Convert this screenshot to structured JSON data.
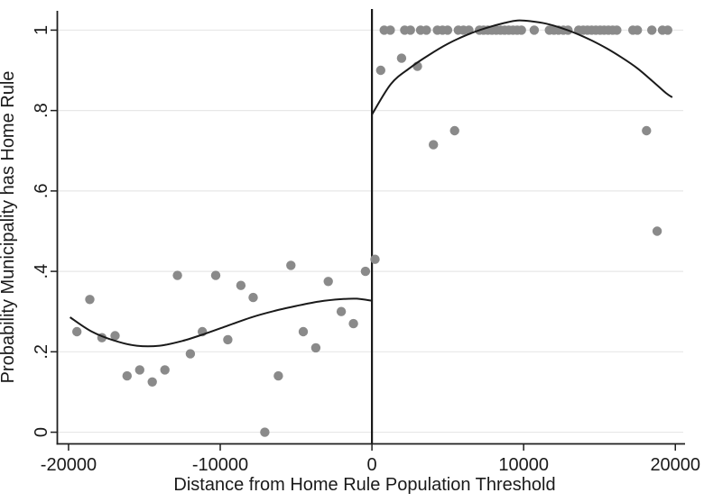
{
  "chart_data": {
    "type": "scatter",
    "title": "",
    "xlabel": "Distance from Home Rule Population Threshold",
    "ylabel": "Probability Municipality has Home Rule",
    "xlim": [
      -20740,
      20580
    ],
    "ylim": [
      -0.029,
      1.048
    ],
    "grid": "horizontal",
    "legend": "none",
    "cutoff_line_x": 0,
    "x_ticks": [
      {
        "value": -20000,
        "label": "-20000"
      },
      {
        "value": -10000,
        "label": "-10000"
      },
      {
        "value": 0,
        "label": "0"
      },
      {
        "value": 10000,
        "label": "10000"
      },
      {
        "value": 20000,
        "label": "20000"
      }
    ],
    "y_ticks": [
      {
        "value": 0,
        "label": "0"
      },
      {
        "value": 0.2,
        "label": ".2"
      },
      {
        "value": 0.4,
        "label": ".4"
      },
      {
        "value": 0.6,
        "label": ".6"
      },
      {
        "value": 0.8,
        "label": ".8"
      },
      {
        "value": 1,
        "label": "1"
      }
    ],
    "series": [
      {
        "name": "binned-probability-means",
        "type": "scatter",
        "points": [
          [
            -19450,
            0.25
          ],
          [
            -18600,
            0.33
          ],
          [
            -17800,
            0.235
          ],
          [
            -16930,
            0.24
          ],
          [
            -16140,
            0.14
          ],
          [
            -15310,
            0.155
          ],
          [
            -14480,
            0.125
          ],
          [
            -13650,
            0.155
          ],
          [
            -12820,
            0.39
          ],
          [
            -11970,
            0.195
          ],
          [
            -11180,
            0.25
          ],
          [
            -10300,
            0.39
          ],
          [
            -9500,
            0.23
          ],
          [
            -8640,
            0.365
          ],
          [
            -7830,
            0.335
          ],
          [
            -7060,
            0.0
          ],
          [
            -6170,
            0.14
          ],
          [
            -5340,
            0.415
          ],
          [
            -4530,
            0.25
          ],
          [
            -3700,
            0.21
          ],
          [
            -2880,
            0.375
          ],
          [
            -2020,
            0.3
          ],
          [
            -1220,
            0.27
          ],
          [
            -430,
            0.4
          ],
          [
            200,
            0.43
          ],
          [
            580,
            0.9
          ],
          [
            1950,
            0.93
          ],
          [
            3000,
            0.91
          ],
          [
            4050,
            0.715
          ],
          [
            5450,
            0.75
          ],
          [
            18100,
            0.75
          ],
          [
            18800,
            0.5
          ],
          [
            810,
            1
          ],
          [
            1210,
            1
          ],
          [
            2160,
            1
          ],
          [
            2535,
            1
          ],
          [
            3205,
            1
          ],
          [
            3585,
            1
          ],
          [
            4315,
            1
          ],
          [
            4650,
            1
          ],
          [
            4985,
            1
          ],
          [
            5695,
            1
          ],
          [
            6035,
            1
          ],
          [
            6390,
            1
          ],
          [
            7085,
            1
          ],
          [
            7360,
            1
          ],
          [
            7640,
            1
          ],
          [
            7915,
            1
          ],
          [
            8190,
            1
          ],
          [
            8470,
            1
          ],
          [
            8745,
            1
          ],
          [
            9020,
            1
          ],
          [
            9300,
            1
          ],
          [
            9575,
            1
          ],
          [
            9850,
            1
          ],
          [
            10700,
            1
          ],
          [
            11700,
            1
          ],
          [
            12000,
            1
          ],
          [
            12300,
            1
          ],
          [
            12620,
            1
          ],
          [
            12920,
            1
          ],
          [
            13630,
            1
          ],
          [
            13930,
            1
          ],
          [
            14210,
            1
          ],
          [
            14480,
            1
          ],
          [
            14760,
            1
          ],
          [
            15040,
            1
          ],
          [
            15310,
            1
          ],
          [
            15590,
            1
          ],
          [
            15870,
            1
          ],
          [
            16140,
            1
          ],
          [
            17200,
            1
          ],
          [
            17500,
            1
          ],
          [
            18450,
            1
          ],
          [
            19150,
            1
          ],
          [
            19500,
            1
          ]
        ]
      },
      {
        "name": "polynomial-fit-left-of-threshold",
        "type": "line",
        "points": [
          [
            -19900,
            0.286
          ],
          [
            -18500,
            0.251
          ],
          [
            -17000,
            0.228
          ],
          [
            -15500,
            0.215
          ],
          [
            -14000,
            0.215
          ],
          [
            -12500,
            0.227
          ],
          [
            -11000,
            0.245
          ],
          [
            -9500,
            0.265
          ],
          [
            -8000,
            0.285
          ],
          [
            -6500,
            0.301
          ],
          [
            -5000,
            0.314
          ],
          [
            -3500,
            0.325
          ],
          [
            -2000,
            0.331
          ],
          [
            -1000,
            0.332
          ],
          [
            0,
            0.327
          ]
        ]
      },
      {
        "name": "polynomial-fit-right-of-threshold",
        "type": "line",
        "points": [
          [
            0,
            0.79
          ],
          [
            1250,
            0.866
          ],
          [
            2500,
            0.906
          ],
          [
            3750,
            0.938
          ],
          [
            5000,
            0.966
          ],
          [
            6250,
            0.988
          ],
          [
            7500,
            1.005
          ],
          [
            8750,
            1.018
          ],
          [
            9600,
            1.024
          ],
          [
            10500,
            1.022
          ],
          [
            11500,
            1.016
          ],
          [
            12500,
            1.005
          ],
          [
            13500,
            0.991
          ],
          [
            14500,
            0.974
          ],
          [
            15500,
            0.954
          ],
          [
            16500,
            0.931
          ],
          [
            17500,
            0.905
          ],
          [
            18500,
            0.873
          ],
          [
            19400,
            0.843
          ],
          [
            19800,
            0.833
          ]
        ]
      }
    ],
    "colors": {
      "dot": "#8a8a8a",
      "fit_line": "#1a1a1a",
      "cutoff_line": "#1a1a1a",
      "grid": "#e7e7e7",
      "axis": "#1f1f1f",
      "text": "#1a1a1a",
      "background": "#ffffff"
    }
  }
}
